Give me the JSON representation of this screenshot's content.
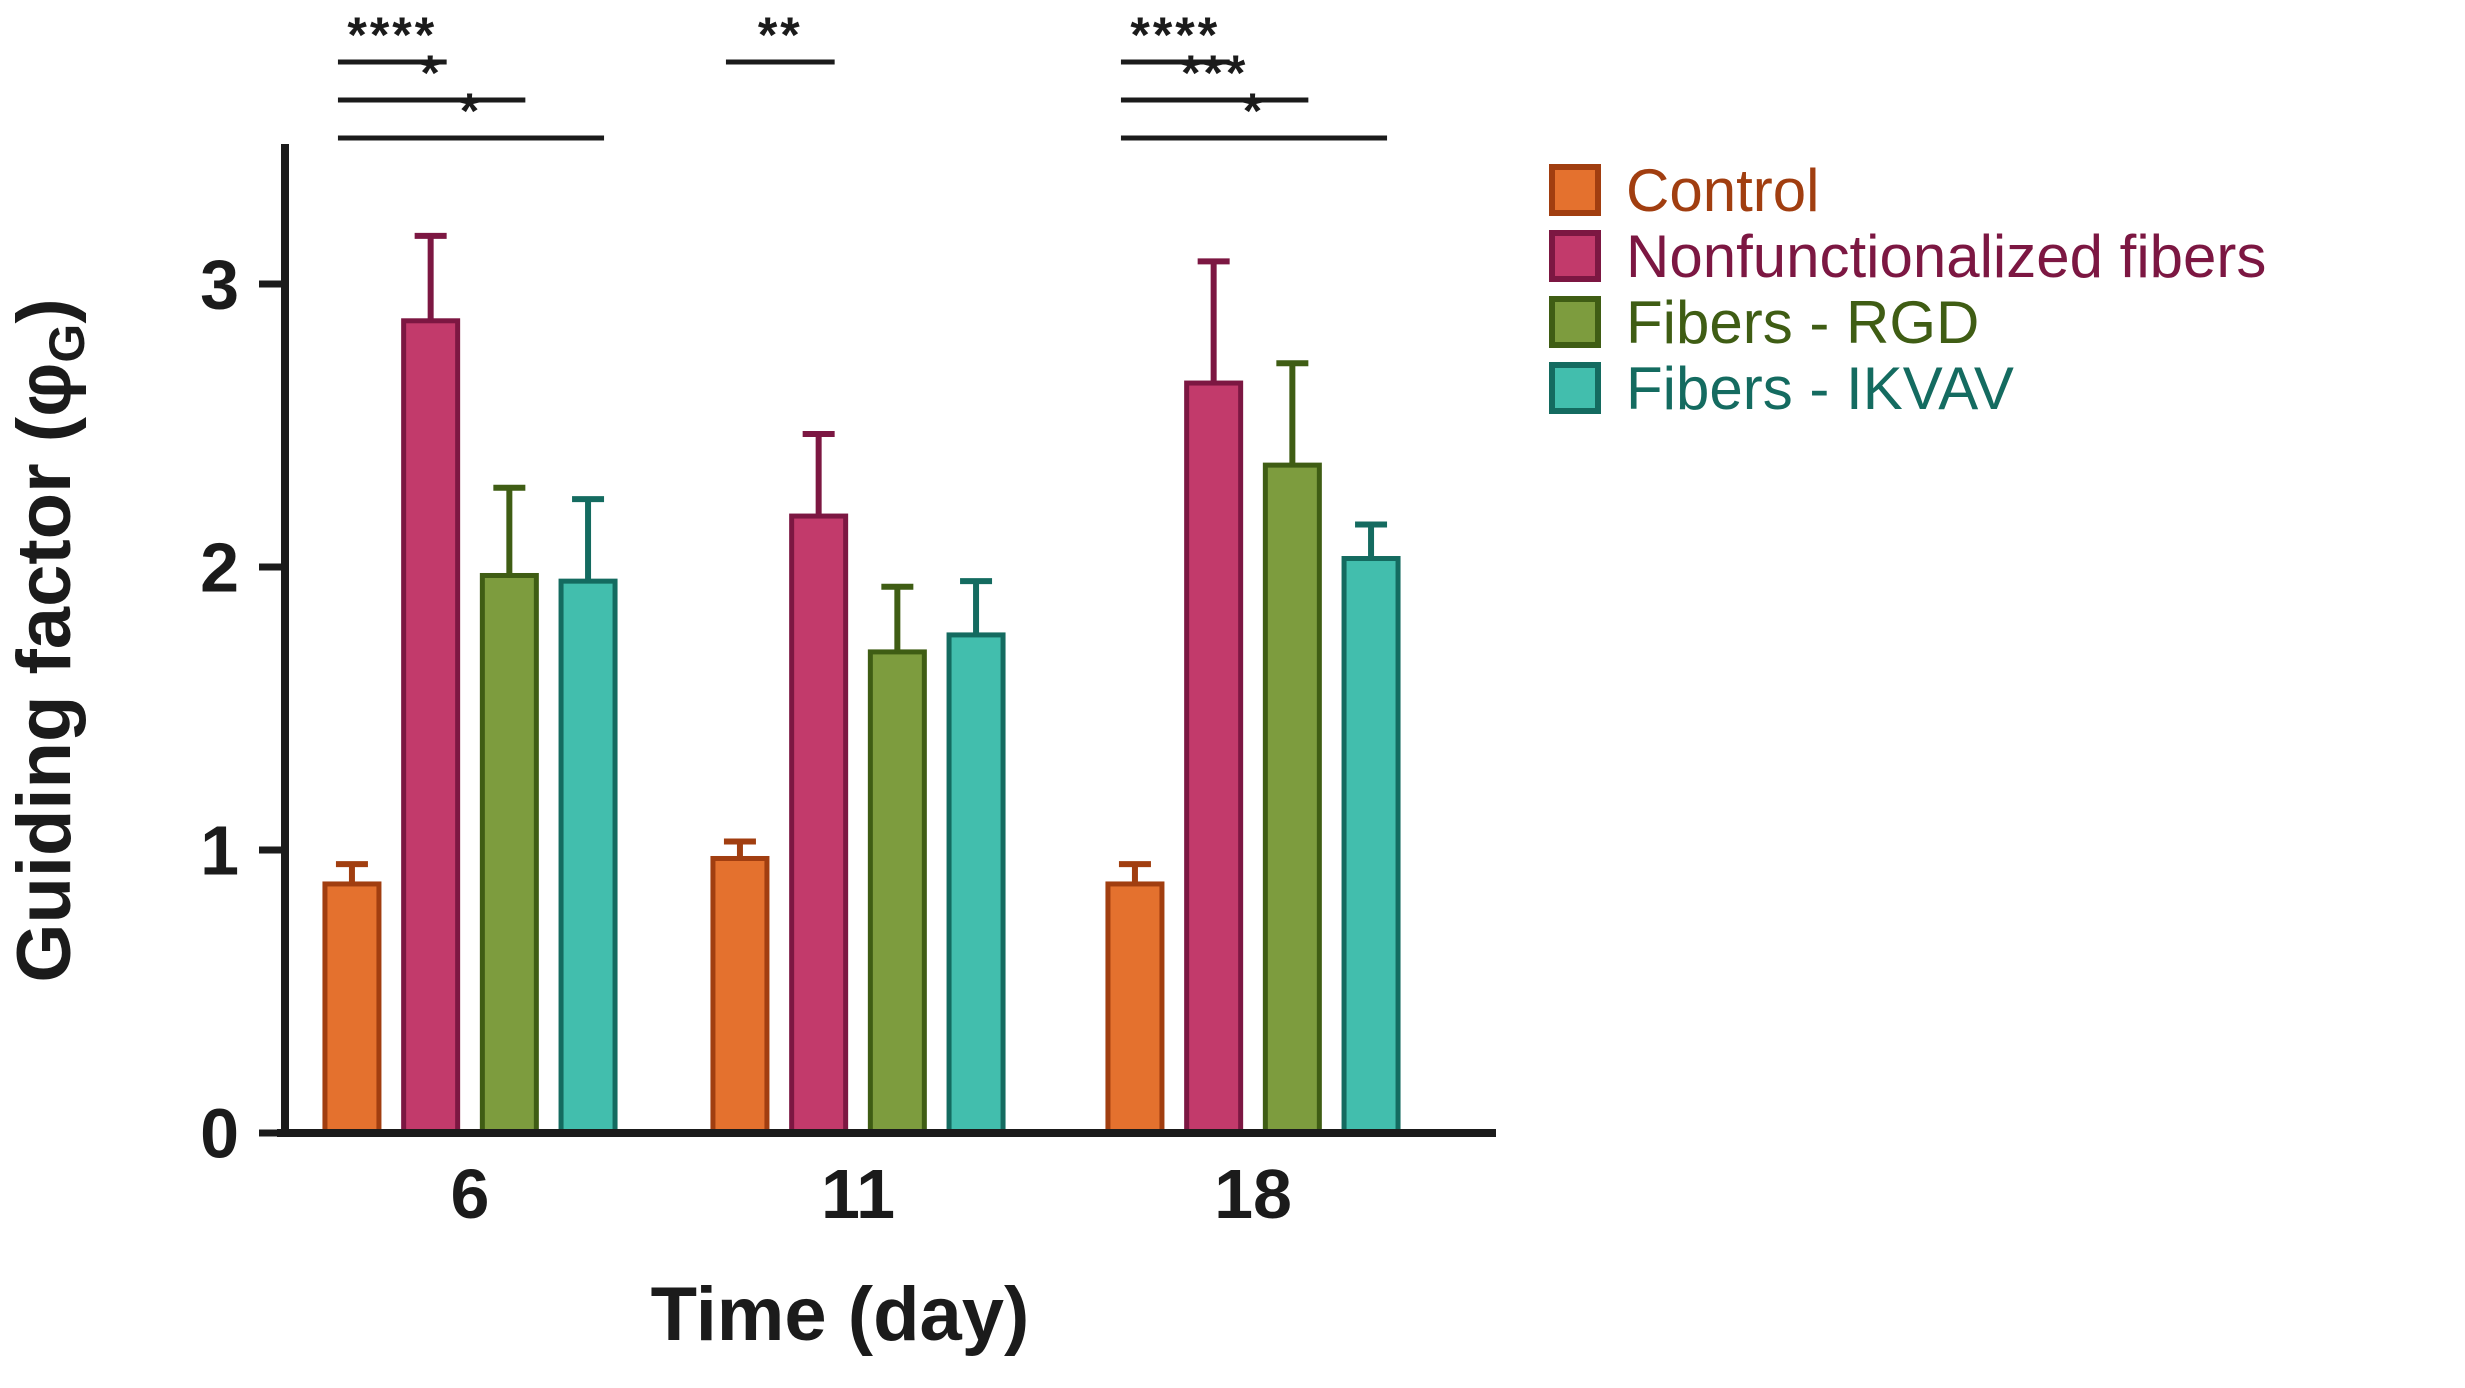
{
  "figure": {
    "background": "#ffffff"
  },
  "chart_data": {
    "type": "bar",
    "title": "",
    "xlabel": "Time (day)",
    "ylabel": "Guiding factor (φG)",
    "ylabel_parts": [
      "Guiding factor (φ",
      {
        "sub": "G"
      },
      ")"
    ],
    "ylim": [
      0,
      3.5
    ],
    "yticks": [
      "0",
      "1",
      "2",
      "3"
    ],
    "categories": [
      "6",
      "11",
      "18"
    ],
    "grid": "off",
    "axis_color": "#1b1b1b",
    "error_bars": "upper caps only",
    "series": [
      {
        "name": "Control",
        "fill": "#E4712E",
        "stroke": "#A13E10",
        "values": [
          0.88,
          0.97,
          0.88
        ],
        "errors_plus": [
          0.07,
          0.06,
          0.07
        ]
      },
      {
        "name": "Nonfunctionalized fibers",
        "fill": "#C23A6B",
        "stroke": "#7C1742",
        "values": [
          2.87,
          2.18,
          2.65
        ],
        "errors_plus": [
          0.3,
          0.29,
          0.43
        ]
      },
      {
        "name": "Fibers - RGD",
        "fill": "#7D9C3E",
        "stroke": "#3F5D14",
        "values": [
          1.97,
          1.7,
          2.36
        ],
        "errors_plus": [
          0.31,
          0.23,
          0.36
        ]
      },
      {
        "name": "Fibers - IKVAV",
        "fill": "#42BEAD",
        "stroke": "#146B60",
        "values": [
          1.95,
          1.76,
          2.03
        ],
        "errors_plus": [
          0.29,
          0.19,
          0.12
        ]
      }
    ],
    "significance": [
      {
        "group": "6",
        "from": "Control",
        "to": "Nonfunctionalized fibers",
        "label": "****",
        "level": 0
      },
      {
        "group": "6",
        "from": "Control",
        "to": "Fibers - RGD",
        "label": "*",
        "level": 1
      },
      {
        "group": "6",
        "from": "Control",
        "to": "Fibers - IKVAV",
        "label": "*",
        "level": 2
      },
      {
        "group": "11",
        "from": "Control",
        "to": "Nonfunctionalized fibers",
        "label": "**",
        "level": 0
      },
      {
        "group": "18",
        "from": "Control",
        "to": "Nonfunctionalized fibers",
        "label": "****",
        "level": 0
      },
      {
        "group": "18",
        "from": "Control",
        "to": "Fibers - RGD",
        "label": "***",
        "level": 1
      },
      {
        "group": "18",
        "from": "Control",
        "to": "Fibers - IKVAV",
        "label": "*",
        "level": 2
      }
    ],
    "legend": {
      "position": "right",
      "entries": [
        "Control",
        "Nonfunctionalized fibers",
        "Fibers - RGD",
        "Fibers - IKVAV"
      ]
    }
  }
}
